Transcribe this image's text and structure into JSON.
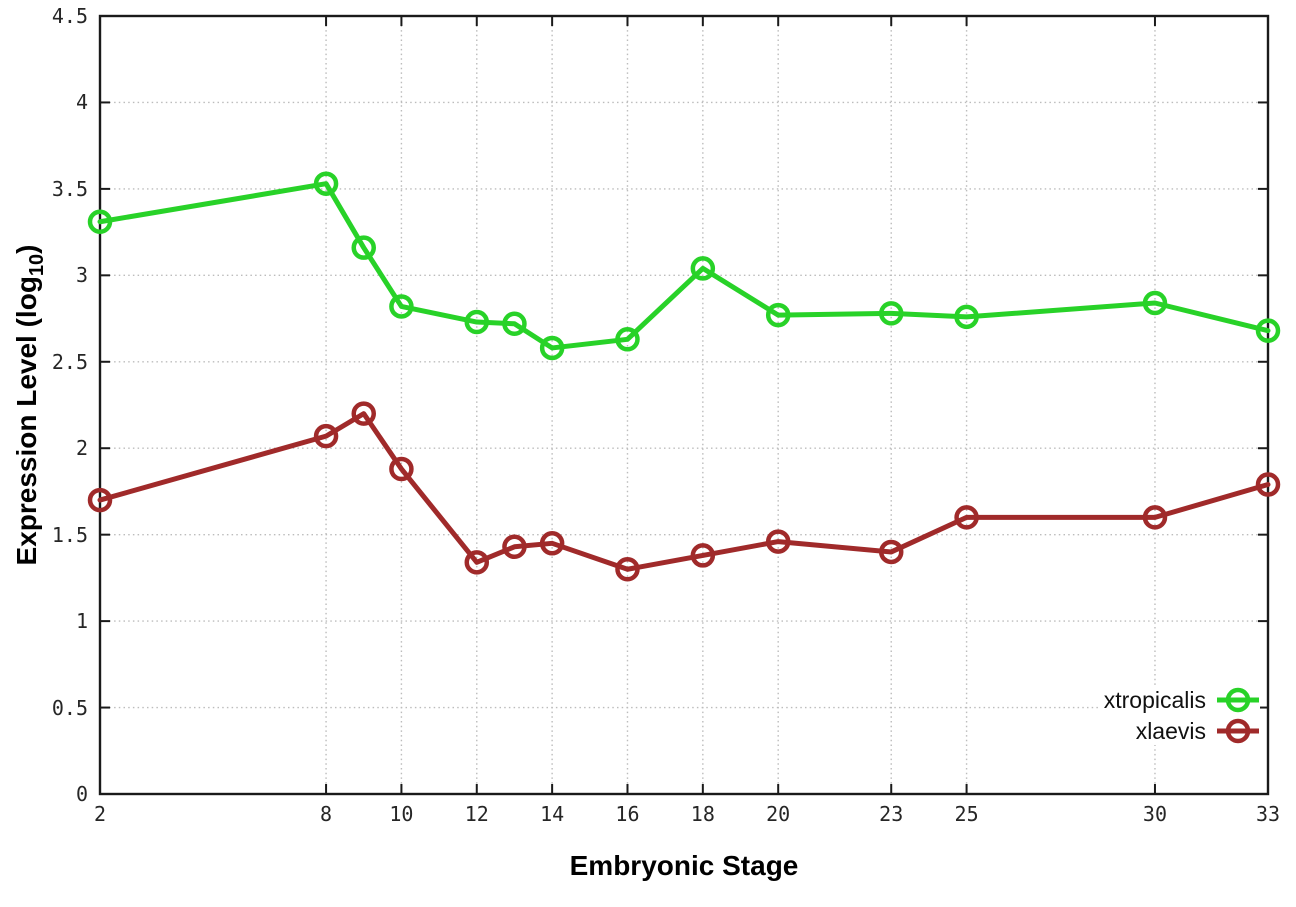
{
  "chart_data": {
    "type": "line",
    "title": "",
    "xlabel": "Embryonic Stage",
    "ylabel": "Expression Level (log10)",
    "ylabel_parts": {
      "main": "Expression Level (log",
      "sub": "10",
      "end": ")"
    },
    "xlim": [
      2,
      33
    ],
    "ylim": [
      0,
      4.5
    ],
    "x": [
      2,
      8,
      9,
      10,
      12,
      13,
      14,
      16,
      18,
      20,
      23,
      25,
      30,
      33
    ],
    "xtick_labels": [
      2,
      8,
      10,
      12,
      14,
      16,
      18,
      20,
      23,
      25,
      30,
      33
    ],
    "yticks": [
      0,
      0.5,
      1,
      1.5,
      2,
      2.5,
      3,
      3.5,
      4,
      4.5
    ],
    "grid": true,
    "grid_style": "dotted",
    "marker": "open-circle",
    "line_width": 5,
    "legend_position": "bottom-right",
    "series": [
      {
        "name": "xtropicalis",
        "color": "#28d228",
        "values": [
          3.31,
          3.53,
          3.16,
          2.82,
          2.73,
          2.72,
          2.58,
          2.63,
          3.04,
          2.77,
          2.78,
          2.76,
          2.84,
          2.68
        ]
      },
      {
        "name": "xlaevis",
        "color": "#a02a2a",
        "values": [
          1.7,
          2.07,
          2.2,
          1.88,
          1.34,
          1.43,
          1.45,
          1.3,
          1.38,
          1.46,
          1.4,
          1.6,
          1.6,
          1.79
        ]
      }
    ],
    "colors": {
      "axis": "#1a1a1a",
      "grid": "#bcbcbc",
      "tick_text": "#262626"
    }
  }
}
